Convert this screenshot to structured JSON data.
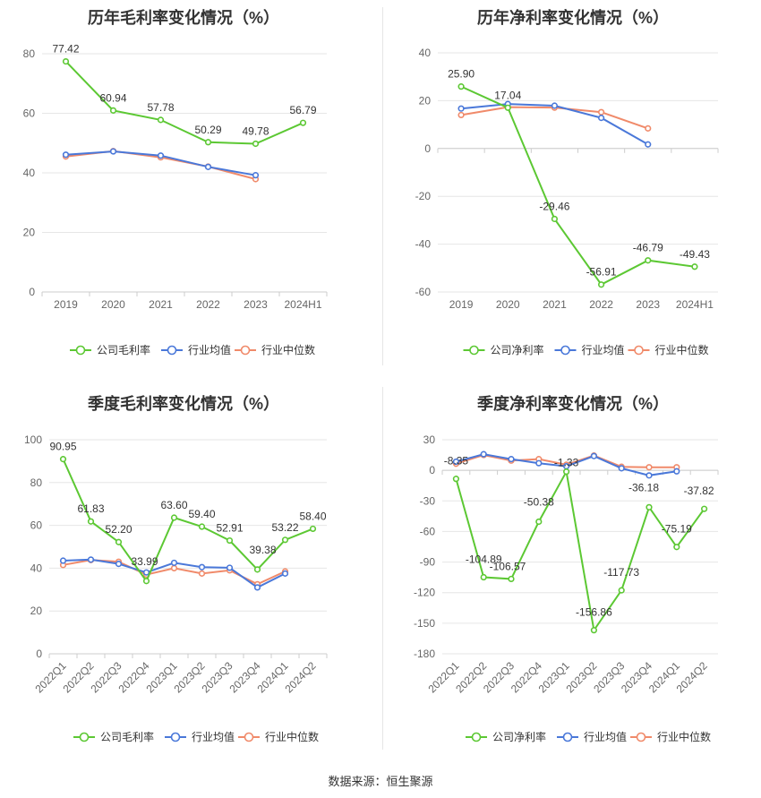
{
  "colors": {
    "company": "#5cc833",
    "industry_avg": "#4a78d9",
    "industry_median": "#f08a6a",
    "grid": "#e6e6e6",
    "axis": "#cccccc",
    "tick_text": "#666666",
    "title_text": "#333333"
  },
  "footer": {
    "source": "数据来源：恒生聚源"
  },
  "chart_data": [
    {
      "type": "line",
      "title": "历年毛利率变化情况（%）",
      "categories": [
        "2019",
        "2020",
        "2021",
        "2022",
        "2023",
        "2024H1"
      ],
      "ylim": [
        0,
        80
      ],
      "yticks": [
        0,
        20,
        40,
        60,
        80
      ],
      "grid": true,
      "legend_position": "bottom-center",
      "rotate_x_labels": false,
      "series": [
        {
          "name": "公司毛利率",
          "color_key": "company",
          "labels": true,
          "values": [
            77.42,
            60.94,
            57.78,
            50.29,
            49.78,
            56.79
          ],
          "value_labels": [
            "77.42",
            "60.94",
            "57.78",
            "50.29",
            "49.78",
            "56.79"
          ]
        },
        {
          "name": "行业均值",
          "color_key": "industry_avg",
          "labels": false,
          "values": [
            46.1,
            47.2,
            45.8,
            42.0,
            39.2,
            null
          ]
        },
        {
          "name": "行业中位数",
          "color_key": "industry_median",
          "labels": false,
          "values": [
            45.5,
            47.3,
            45.2,
            42.1,
            37.9,
            null
          ]
        }
      ]
    },
    {
      "type": "line",
      "title": "历年净利率变化情况（%）",
      "categories": [
        "2019",
        "2020",
        "2021",
        "2022",
        "2023",
        "2024H1"
      ],
      "ylim": [
        -60,
        40
      ],
      "yticks": [
        -60,
        -40,
        -20,
        0,
        20,
        40
      ],
      "grid": true,
      "legend_position": "bottom-center",
      "rotate_x_labels": false,
      "series": [
        {
          "name": "公司净利率",
          "color_key": "company",
          "labels": true,
          "values": [
            25.9,
            17.04,
            -29.46,
            -56.91,
            -46.79,
            -49.43
          ],
          "value_labels": [
            "25.90",
            "17.04",
            "-29.46",
            "-56.91",
            "-46.79",
            "-49.43"
          ]
        },
        {
          "name": "行业均值",
          "color_key": "industry_avg",
          "labels": false,
          "values": [
            16.7,
            18.6,
            17.9,
            12.8,
            1.7,
            null
          ]
        },
        {
          "name": "行业中位数",
          "color_key": "industry_median",
          "labels": false,
          "values": [
            14.0,
            17.3,
            17.1,
            15.2,
            8.4,
            null
          ]
        }
      ]
    },
    {
      "type": "line",
      "title": "季度毛利率变化情况（%）",
      "categories": [
        "2022Q1",
        "2022Q2",
        "2022Q3",
        "2022Q4",
        "2023Q1",
        "2023Q2",
        "2023Q3",
        "2023Q4",
        "2024Q1",
        "2024Q2"
      ],
      "ylim": [
        0,
        100
      ],
      "yticks": [
        0,
        20,
        40,
        60,
        80,
        100
      ],
      "grid": true,
      "legend_position": "bottom-center",
      "rotate_x_labels": true,
      "series": [
        {
          "name": "公司毛利率",
          "color_key": "company",
          "labels": true,
          "values": [
            90.95,
            61.83,
            52.2,
            33.99,
            63.6,
            59.4,
            52.91,
            39.38,
            53.22,
            58.4
          ],
          "value_labels": [
            "90.95",
            "61.83",
            "52.20",
            "33.99",
            "63.60",
            "59.40",
            "52.91",
            "39.38",
            "53.22",
            "58.40"
          ]
        },
        {
          "name": "行业均值",
          "color_key": "industry_avg",
          "labels": false,
          "values": [
            43.5,
            44.0,
            42.0,
            38.0,
            42.5,
            40.5,
            40.2,
            31.0,
            37.5,
            null
          ]
        },
        {
          "name": "行业中位数",
          "color_key": "industry_median",
          "labels": false,
          "values": [
            41.5,
            43.8,
            43.0,
            37.0,
            40.0,
            37.5,
            39.0,
            32.5,
            38.5,
            null
          ]
        }
      ]
    },
    {
      "type": "line",
      "title": "季度净利率变化情况（%）",
      "categories": [
        "2022Q1",
        "2022Q2",
        "2022Q3",
        "2022Q4",
        "2023Q1",
        "2023Q2",
        "2023Q3",
        "2023Q4",
        "2024Q1",
        "2024Q2"
      ],
      "ylim": [
        -180,
        30
      ],
      "yticks": [
        -180,
        -150,
        -120,
        -90,
        -60,
        -30,
        0,
        30
      ],
      "grid": true,
      "legend_position": "bottom-center",
      "rotate_x_labels": true,
      "series": [
        {
          "name": "公司净利率",
          "color_key": "company",
          "labels": true,
          "values": [
            -8.35,
            -104.89,
            -106.57,
            -50.38,
            -1.33,
            -156.86,
            -117.73,
            -36.18,
            -75.19,
            -37.82
          ],
          "value_labels": [
            "-8.35",
            "-104.89",
            "-106.57",
            "-50.38",
            "-1.33",
            "-156.86",
            "-117.73",
            "-36.18",
            "-75.19",
            "-37.82"
          ]
        },
        {
          "name": "行业均值",
          "color_key": "industry_avg",
          "labels": false,
          "values": [
            8.5,
            15.8,
            11.0,
            7.0,
            4.0,
            14.0,
            2.0,
            -5.0,
            -1.0,
            null
          ]
        },
        {
          "name": "行业中位数",
          "color_key": "industry_median",
          "labels": false,
          "values": [
            6.5,
            15.0,
            9.5,
            11.0,
            5.5,
            14.5,
            3.5,
            3.0,
            3.0,
            null
          ]
        }
      ]
    }
  ]
}
